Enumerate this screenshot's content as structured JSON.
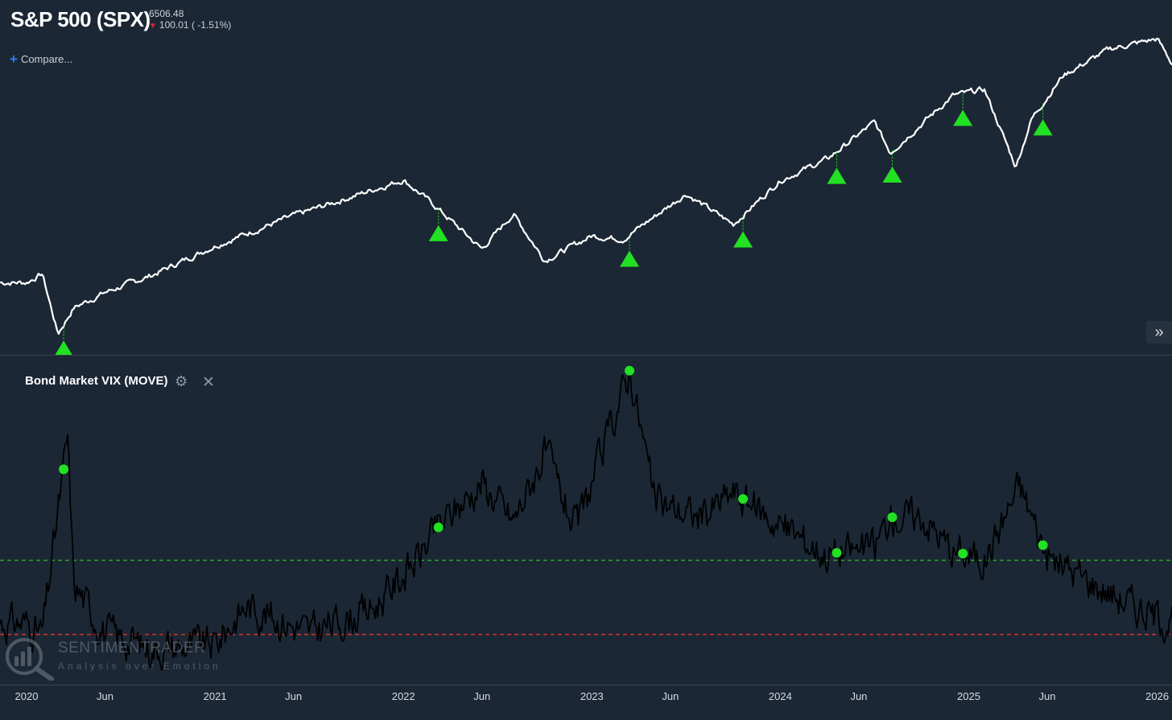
{
  "header": {
    "title": "S&P 500 (SPX)",
    "price": "6506.48",
    "change": "100.01 ( -1.51%)",
    "change_color": "#e3262a",
    "compare_label": "Compare..."
  },
  "expand_icon": "double-chevron-right-icon",
  "indicator": {
    "title": "Bond Market VIX (MOVE)",
    "settings_icon": "gear-icon",
    "close_icon": "close-icon"
  },
  "watermark": {
    "name": "SENTIMENTRADER",
    "tagline": "Analysis over Emotion"
  },
  "x_ticks": [
    "2020",
    "Jun",
    "2021",
    "Jun",
    "2022",
    "Jun",
    "2023",
    "Jun",
    "2024",
    "Jun",
    "2025",
    "Jun",
    "2026"
  ],
  "colors": {
    "background": "#1c2735",
    "price_line": "#ffffff",
    "indicator_line": "#000000",
    "signal": "#22e022",
    "upper_threshold": "#2aa52a",
    "lower_threshold": "#c9302c"
  },
  "chart_data": [
    {
      "type": "line",
      "title": "S&P 500 (SPX)",
      "x": [
        "2020-01",
        "2020-02",
        "2020-03",
        "2020-04",
        "2020-06",
        "2020-09",
        "2021-01",
        "2021-06",
        "2021-09",
        "2022-01",
        "2022-03",
        "2022-06",
        "2022-08",
        "2022-10",
        "2023-01",
        "2023-03",
        "2023-07",
        "2023-10",
        "2024-01",
        "2024-04",
        "2024-07",
        "2024-08",
        "2024-12",
        "2025-02",
        "2025-04",
        "2025-05",
        "2025-07",
        "2025-10",
        "2026-01",
        "2026-02"
      ],
      "series": [
        {
          "values": [
            3250,
            3380,
            2480,
            2870,
            3100,
            3360,
            3800,
            4250,
            4480,
            4790,
            4400,
            3750,
            4280,
            3580,
            3950,
            3900,
            4580,
            4120,
            4780,
            5100,
            5650,
            5200,
            6050,
            6140,
            4980,
            5700,
            6350,
            6750,
            6900,
            6506.48
          ]
        }
      ],
      "signals": [
        "2020-03-12",
        "2022-03-08",
        "2023-03-13",
        "2023-10-20",
        "2024-04-19",
        "2024-08-05",
        "2024-12-20",
        "2025-05-23"
      ]
    },
    {
      "type": "line",
      "title": "Bond Market VIX (MOVE)",
      "x": [
        "2020-01",
        "2020-02",
        "2020-03-20",
        "2020-04",
        "2020-06",
        "2020-09",
        "2021-01",
        "2021-03",
        "2021-07",
        "2021-11",
        "2022-02",
        "2022-03",
        "2022-06",
        "2022-08",
        "2022-10",
        "2022-12",
        "2023-03-14",
        "2023-05",
        "2023-08",
        "2023-10",
        "2024-01",
        "2024-04",
        "2024-07",
        "2024-08",
        "2024-10",
        "2024-12",
        "2025-02",
        "2025-04-08",
        "2025-06",
        "2025-09",
        "2025-12",
        "2026-02"
      ],
      "series": [
        {
          "values": [
            68,
            62,
            163,
            88,
            63,
            55,
            57,
            77,
            63,
            75,
            102,
            115,
            140,
            120,
            155,
            115,
            198,
            130,
            122,
            135,
            118,
            103,
            107,
            122,
            123,
            105,
            100,
            139,
            102,
            88,
            75,
            68
          ]
        }
      ],
      "signals": [
        "2020-03-12",
        "2022-03-08",
        "2023-03-13",
        "2023-10-20",
        "2024-04-19",
        "2024-08-05",
        "2024-12-20",
        "2025-05-23"
      ],
      "thresholds": [
        100,
        62
      ]
    }
  ]
}
